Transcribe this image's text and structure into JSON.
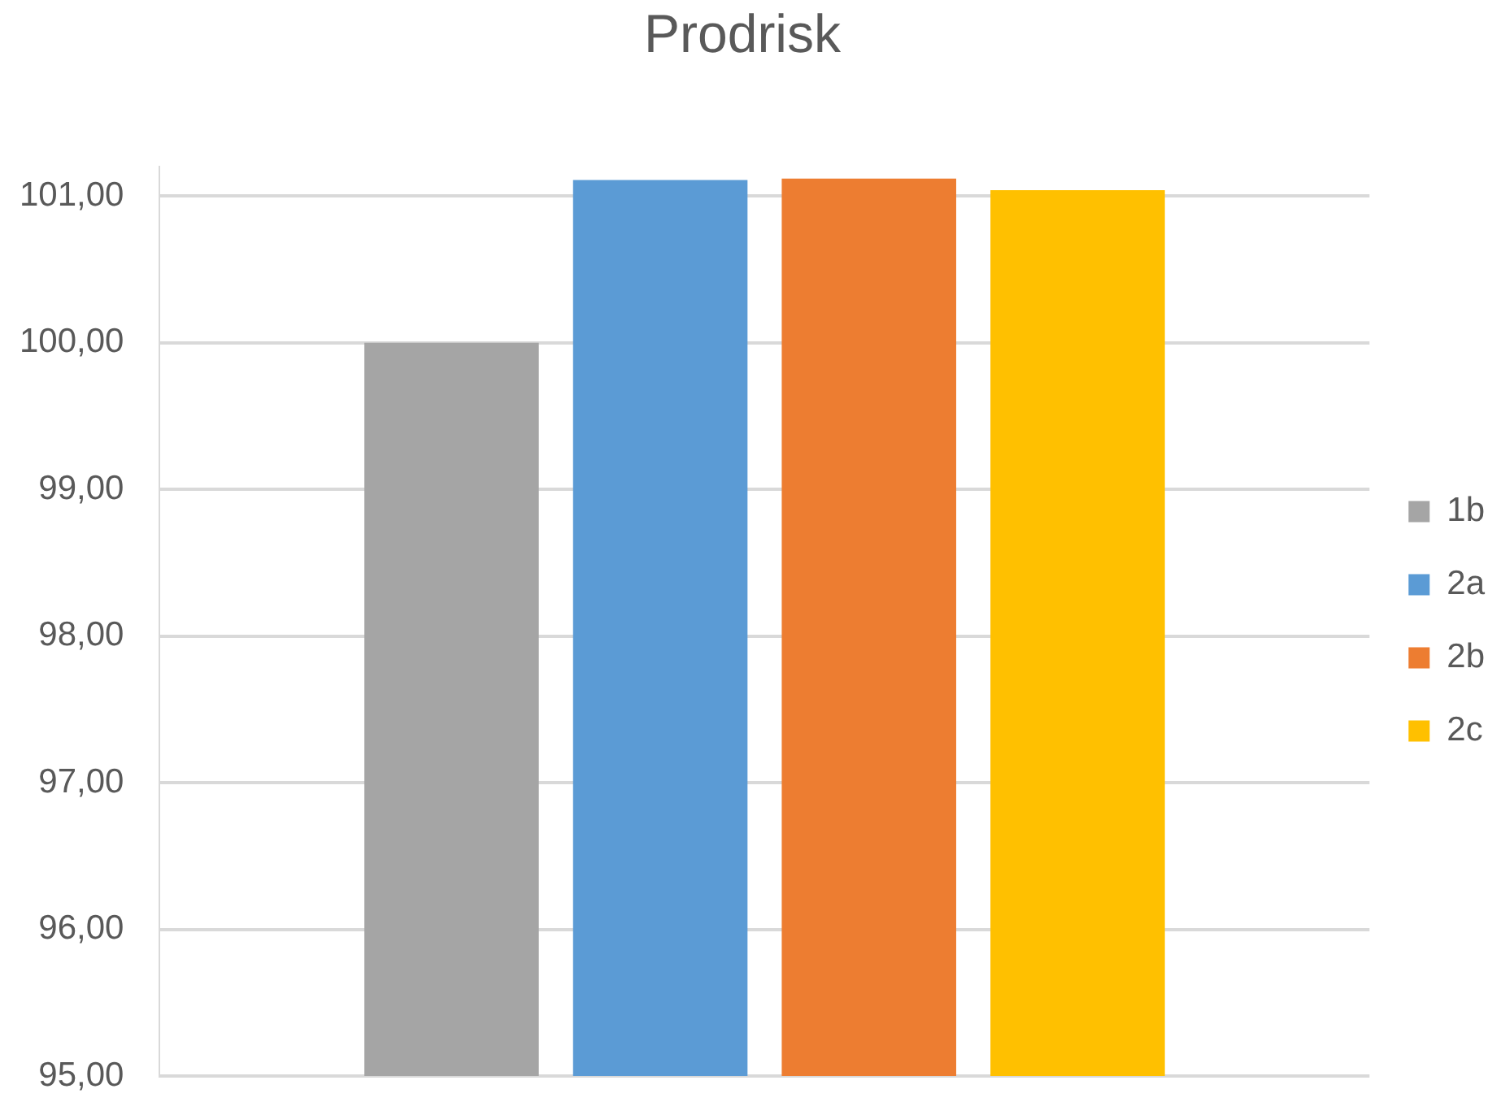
{
  "chart_data": {
    "type": "bar",
    "title": "Prodrisk",
    "categories": [
      null
    ],
    "series": [
      {
        "name": "1b",
        "color": "#a5a5a5",
        "values": [
          100.0
        ]
      },
      {
        "name": "2a",
        "color": "#5b9bd5",
        "values": [
          101.11
        ]
      },
      {
        "name": "2b",
        "color": "#ed7d31",
        "values": [
          101.12
        ]
      },
      {
        "name": "2c",
        "color": "#ffc000",
        "values": [
          101.04
        ]
      }
    ],
    "ylim": [
      95,
      101.2
    ],
    "yticks": [
      {
        "value": 95,
        "label": "95,00"
      },
      {
        "value": 96,
        "label": "96,00"
      },
      {
        "value": 97,
        "label": "97,00"
      },
      {
        "value": 98,
        "label": "98,00"
      },
      {
        "value": 99,
        "label": "99,00"
      },
      {
        "value": 100,
        "label": "100,00"
      },
      {
        "value": 101,
        "label": "101,00"
      }
    ],
    "grid": "y",
    "legend": "right",
    "tick_labels": "y"
  }
}
